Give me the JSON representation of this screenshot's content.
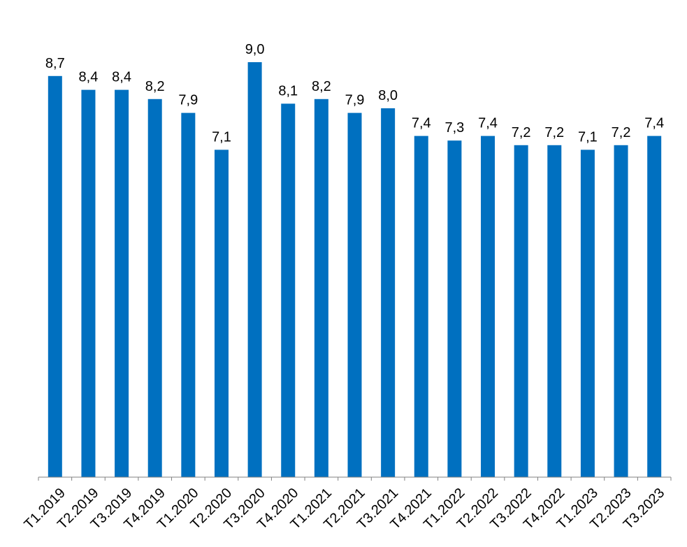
{
  "chart_data": {
    "type": "bar",
    "categories": [
      "T1.2019",
      "T2.2019",
      "T3.2019",
      "T4.2019",
      "T1.2020",
      "T2.2020",
      "T3.2020",
      "T4.2020",
      "T1.2021",
      "T2.2021",
      "T3.2021",
      "T4.2021",
      "T1.2022",
      "T2.2022",
      "T3.2022",
      "T4.2022",
      "T1.2023",
      "T2.2023",
      "T3.2023"
    ],
    "values": [
      8.7,
      8.4,
      8.4,
      8.2,
      7.9,
      7.1,
      9.0,
      8.1,
      8.2,
      7.9,
      8.0,
      7.4,
      7.3,
      7.4,
      7.2,
      7.2,
      7.1,
      7.2,
      7.4
    ],
    "value_labels": [
      "8,7",
      "8,4",
      "8,4",
      "8,2",
      "7,9",
      "7,1",
      "9,0",
      "8,1",
      "8,2",
      "7,9",
      "8,0",
      "7,4",
      "7,3",
      "7,4",
      "7,2",
      "7,2",
      "7,1",
      "7,2",
      "7,4"
    ],
    "title": "",
    "xlabel": "",
    "ylabel": "",
    "ylim": [
      0,
      9.5
    ],
    "grid": false,
    "legend": "none",
    "colors": {
      "bar": "#0070C0",
      "axis": "#808080",
      "text": "#000000"
    }
  }
}
